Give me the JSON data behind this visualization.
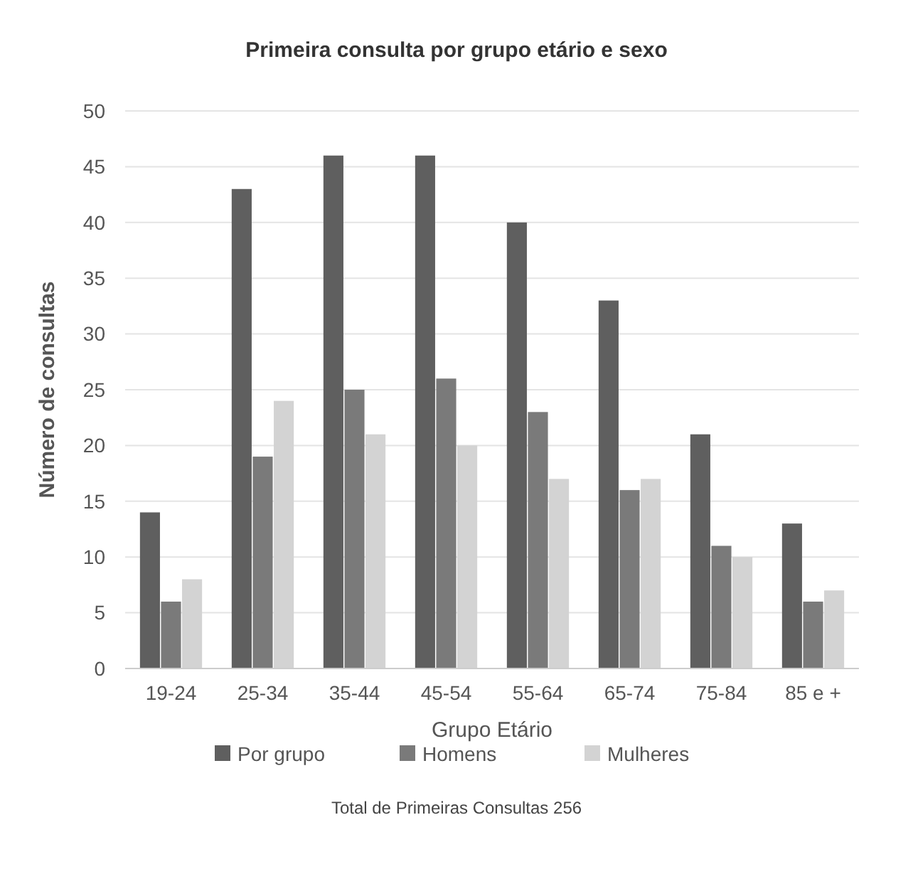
{
  "chart_data": {
    "type": "bar",
    "title": "Primeira consulta por grupo etário e sexo",
    "xlabel": "Grupo Etário",
    "ylabel": "Número de consultas",
    "categories": [
      "19-24",
      "25-34",
      "35-44",
      "45-54",
      "55-64",
      "65-74",
      "75-84",
      "85 e +"
    ],
    "series": [
      {
        "name": "Por grupo",
        "color": "#5f5f5f",
        "values": [
          14,
          43,
          46,
          46,
          40,
          33,
          21,
          13
        ]
      },
      {
        "name": "Homens",
        "color": "#7a7a7a",
        "values": [
          6,
          19,
          25,
          26,
          23,
          16,
          11,
          6
        ]
      },
      {
        "name": "Mulheres",
        "color": "#d3d3d3",
        "values": [
          8,
          24,
          21,
          20,
          17,
          17,
          10,
          7
        ]
      }
    ],
    "ylim": [
      0,
      50
    ],
    "yticks": [
      0,
      5,
      10,
      15,
      20,
      25,
      30,
      35,
      40,
      45,
      50
    ],
    "grid": "y",
    "legend": "bottom",
    "annotations": [
      "Total de Primeiras Consultas 256"
    ]
  }
}
